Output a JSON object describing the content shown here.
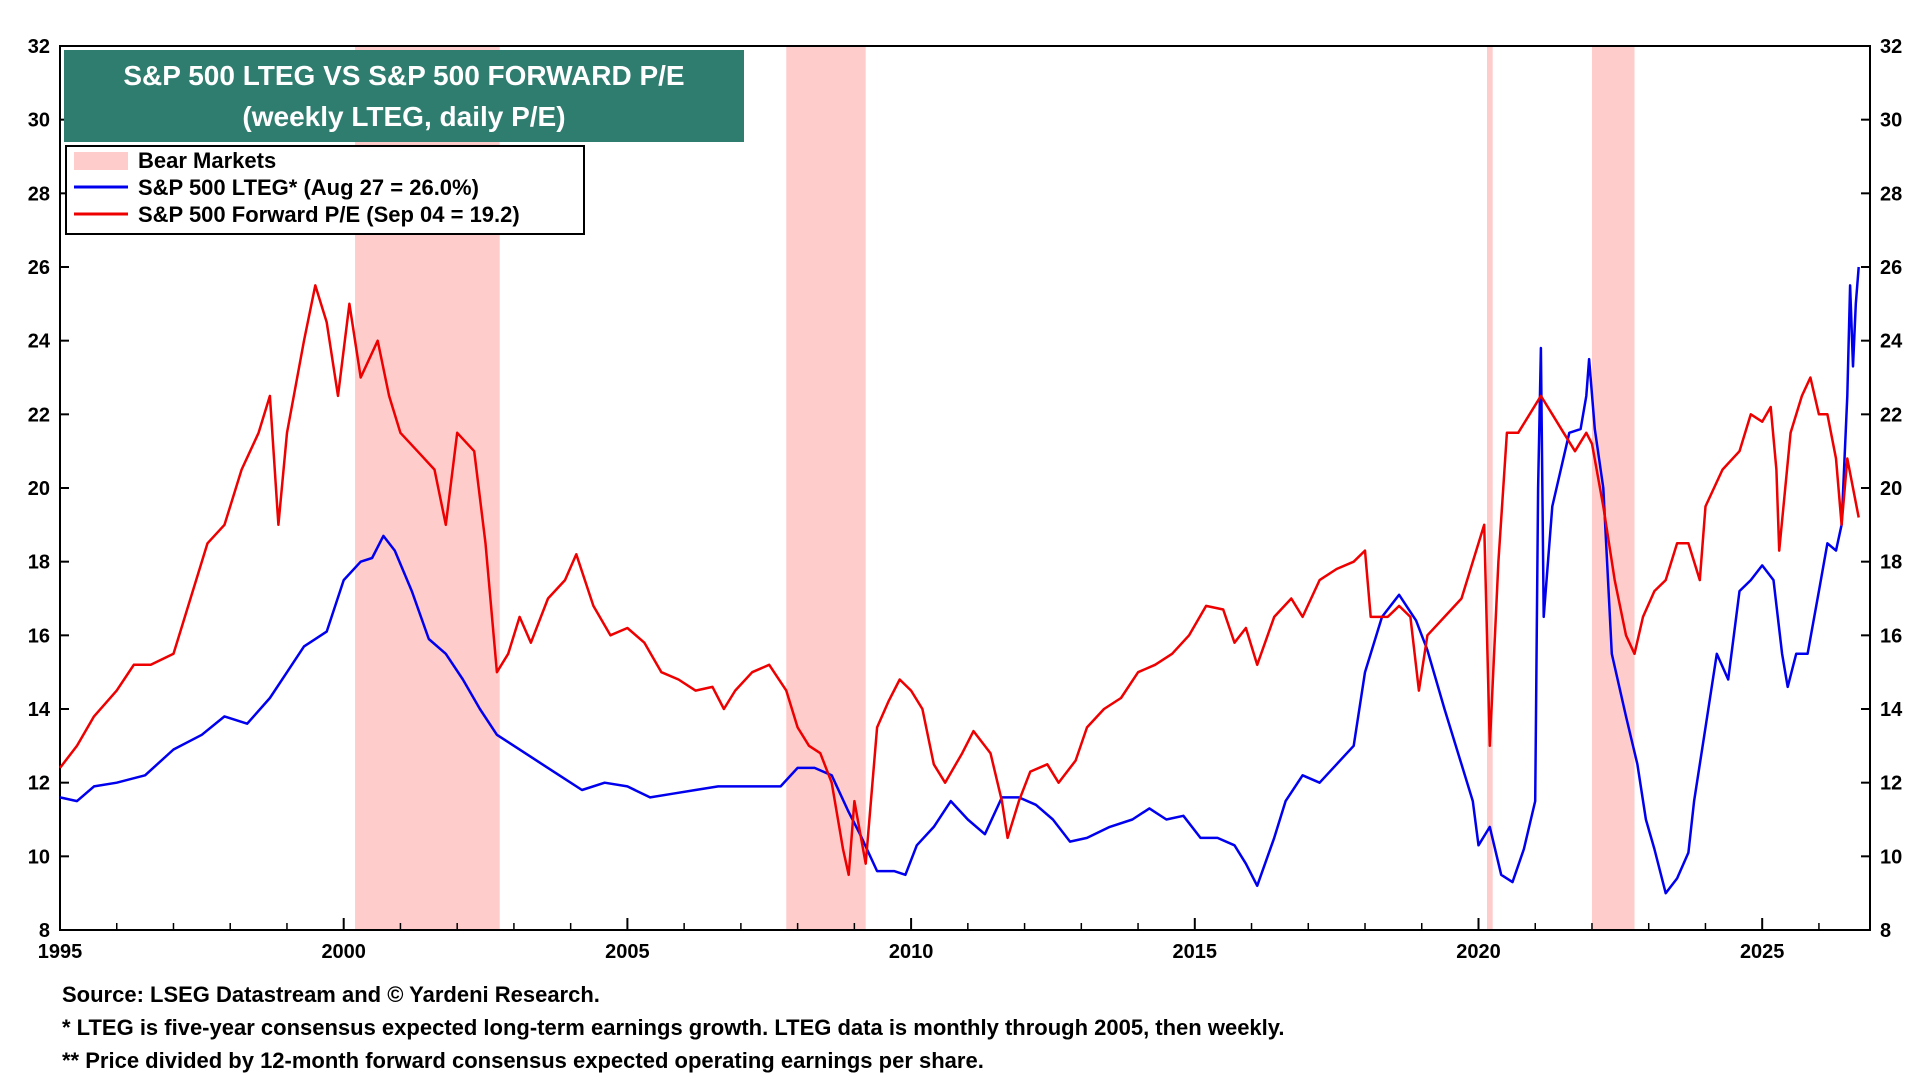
{
  "chart_data": {
    "type": "line",
    "title": "S&P 500 LTEG VS S&P 500 FORWARD P/E",
    "subtitle": "(weekly LTEG, daily P/E)",
    "xlabel": "",
    "ylabel": "",
    "xlim": [
      1995,
      2026.9
    ],
    "ylim": [
      8,
      32
    ],
    "x_ticks": [
      "1995",
      "2000",
      "2005",
      "2010",
      "2015",
      "2020",
      "2025"
    ],
    "y_ticks": [
      "8",
      "10",
      "12",
      "14",
      "16",
      "18",
      "20",
      "22",
      "24",
      "26",
      "28",
      "30",
      "32"
    ],
    "grid": false,
    "legend_position": "top-left",
    "bear_markets_label": "Bear Markets",
    "bear_markets": [
      [
        2000.2,
        2002.75
      ],
      [
        2007.8,
        2009.2
      ],
      [
        2020.15,
        2020.25
      ],
      [
        2022.0,
        2022.75
      ]
    ],
    "series": [
      {
        "name": "S&P 500 LTEG* (Aug 27 = 26.0%)",
        "color": "#0000ee",
        "points": [
          [
            1995.0,
            11.6
          ],
          [
            1995.3,
            11.5
          ],
          [
            1995.6,
            11.9
          ],
          [
            1996.0,
            12.0
          ],
          [
            1996.5,
            12.2
          ],
          [
            1997.0,
            12.9
          ],
          [
            1997.5,
            13.3
          ],
          [
            1997.9,
            13.8
          ],
          [
            1998.3,
            13.6
          ],
          [
            1998.7,
            14.3
          ],
          [
            1999.0,
            15.0
          ],
          [
            1999.3,
            15.7
          ],
          [
            1999.7,
            16.1
          ],
          [
            2000.0,
            17.5
          ],
          [
            2000.3,
            18.0
          ],
          [
            2000.5,
            18.1
          ],
          [
            2000.7,
            18.7
          ],
          [
            2000.9,
            18.3
          ],
          [
            2001.2,
            17.2
          ],
          [
            2001.5,
            15.9
          ],
          [
            2001.8,
            15.5
          ],
          [
            2002.1,
            14.8
          ],
          [
            2002.4,
            14.0
          ],
          [
            2002.7,
            13.3
          ],
          [
            2003.0,
            13.0
          ],
          [
            2003.4,
            12.6
          ],
          [
            2003.8,
            12.2
          ],
          [
            2004.2,
            11.8
          ],
          [
            2004.6,
            12.0
          ],
          [
            2005.0,
            11.9
          ],
          [
            2005.4,
            11.6
          ],
          [
            2005.8,
            11.7
          ],
          [
            2006.2,
            11.8
          ],
          [
            2006.6,
            11.9
          ],
          [
            2007.0,
            11.9
          ],
          [
            2007.4,
            11.9
          ],
          [
            2007.7,
            11.9
          ],
          [
            2008.0,
            12.4
          ],
          [
            2008.3,
            12.4
          ],
          [
            2008.6,
            12.2
          ],
          [
            2008.9,
            11.2
          ],
          [
            2009.1,
            10.6
          ],
          [
            2009.4,
            9.6
          ],
          [
            2009.7,
            9.6
          ],
          [
            2009.9,
            9.5
          ],
          [
            2010.1,
            10.3
          ],
          [
            2010.4,
            10.8
          ],
          [
            2010.7,
            11.5
          ],
          [
            2011.0,
            11.0
          ],
          [
            2011.3,
            10.6
          ],
          [
            2011.6,
            11.6
          ],
          [
            2011.9,
            11.6
          ],
          [
            2012.2,
            11.4
          ],
          [
            2012.5,
            11.0
          ],
          [
            2012.8,
            10.4
          ],
          [
            2013.1,
            10.5
          ],
          [
            2013.5,
            10.8
          ],
          [
            2013.9,
            11.0
          ],
          [
            2014.2,
            11.3
          ],
          [
            2014.5,
            11.0
          ],
          [
            2014.8,
            11.1
          ],
          [
            2015.1,
            10.5
          ],
          [
            2015.4,
            10.5
          ],
          [
            2015.7,
            10.3
          ],
          [
            2015.9,
            9.8
          ],
          [
            2016.1,
            9.2
          ],
          [
            2016.4,
            10.5
          ],
          [
            2016.6,
            11.5
          ],
          [
            2016.9,
            12.2
          ],
          [
            2017.2,
            12.0
          ],
          [
            2017.5,
            12.5
          ],
          [
            2017.8,
            13.0
          ],
          [
            2018.0,
            15.0
          ],
          [
            2018.3,
            16.5
          ],
          [
            2018.6,
            17.1
          ],
          [
            2018.9,
            16.4
          ],
          [
            2019.1,
            15.6
          ],
          [
            2019.4,
            14.0
          ],
          [
            2019.7,
            12.5
          ],
          [
            2019.9,
            11.5
          ],
          [
            2020.0,
            10.3
          ],
          [
            2020.2,
            10.8
          ],
          [
            2020.4,
            9.5
          ],
          [
            2020.6,
            9.3
          ],
          [
            2020.8,
            10.2
          ],
          [
            2021.0,
            11.5
          ],
          [
            2021.05,
            20.0
          ],
          [
            2021.1,
            23.8
          ],
          [
            2021.15,
            16.5
          ],
          [
            2021.3,
            19.5
          ],
          [
            2021.6,
            21.5
          ],
          [
            2021.8,
            21.6
          ],
          [
            2021.9,
            22.5
          ],
          [
            2021.95,
            23.5
          ],
          [
            2022.05,
            21.6
          ],
          [
            2022.2,
            20.0
          ],
          [
            2022.35,
            15.5
          ],
          [
            2022.6,
            13.8
          ],
          [
            2022.8,
            12.5
          ],
          [
            2022.95,
            11.0
          ],
          [
            2023.1,
            10.2
          ],
          [
            2023.3,
            9.0
          ],
          [
            2023.5,
            9.4
          ],
          [
            2023.7,
            10.1
          ],
          [
            2023.8,
            11.5
          ],
          [
            2024.0,
            13.5
          ],
          [
            2024.2,
            15.5
          ],
          [
            2024.4,
            14.8
          ],
          [
            2024.6,
            17.2
          ],
          [
            2024.8,
            17.5
          ],
          [
            2025.0,
            17.9
          ],
          [
            2025.2,
            17.5
          ],
          [
            2025.35,
            15.5
          ],
          [
            2025.45,
            14.6
          ],
          [
            2025.6,
            15.5
          ],
          [
            2025.8,
            15.5
          ],
          [
            2026.0,
            17.2
          ],
          [
            2026.15,
            18.5
          ],
          [
            2026.3,
            18.3
          ],
          [
            2026.4,
            19.0
          ],
          [
            2026.5,
            22.5
          ],
          [
            2026.55,
            25.5
          ],
          [
            2026.6,
            23.3
          ],
          [
            2026.65,
            25.0
          ],
          [
            2026.7,
            26.0
          ]
        ]
      },
      {
        "name": "S&P 500 Forward P/E (Sep 04 = 19.2)",
        "color": "#ee0000",
        "points": [
          [
            1995.0,
            12.4
          ],
          [
            1995.3,
            13.0
          ],
          [
            1995.6,
            13.8
          ],
          [
            1996.0,
            14.5
          ],
          [
            1996.3,
            15.2
          ],
          [
            1996.6,
            15.2
          ],
          [
            1997.0,
            15.5
          ],
          [
            1997.3,
            17.0
          ],
          [
            1997.6,
            18.5
          ],
          [
            1997.9,
            19.0
          ],
          [
            1998.2,
            20.5
          ],
          [
            1998.5,
            21.5
          ],
          [
            1998.7,
            22.5
          ],
          [
            1998.85,
            19.0
          ],
          [
            1999.0,
            21.5
          ],
          [
            1999.3,
            24.0
          ],
          [
            1999.5,
            25.5
          ],
          [
            1999.7,
            24.5
          ],
          [
            1999.9,
            22.5
          ],
          [
            2000.1,
            25.0
          ],
          [
            2000.3,
            23.0
          ],
          [
            2000.6,
            24.0
          ],
          [
            2000.8,
            22.5
          ],
          [
            2001.0,
            21.5
          ],
          [
            2001.3,
            21.0
          ],
          [
            2001.6,
            20.5
          ],
          [
            2001.8,
            19.0
          ],
          [
            2002.0,
            21.5
          ],
          [
            2002.3,
            21.0
          ],
          [
            2002.5,
            18.5
          ],
          [
            2002.7,
            15.0
          ],
          [
            2002.9,
            15.5
          ],
          [
            2003.1,
            16.5
          ],
          [
            2003.3,
            15.8
          ],
          [
            2003.6,
            17.0
          ],
          [
            2003.9,
            17.5
          ],
          [
            2004.1,
            18.2
          ],
          [
            2004.4,
            16.8
          ],
          [
            2004.7,
            16.0
          ],
          [
            2005.0,
            16.2
          ],
          [
            2005.3,
            15.8
          ],
          [
            2005.6,
            15.0
          ],
          [
            2005.9,
            14.8
          ],
          [
            2006.2,
            14.5
          ],
          [
            2006.5,
            14.6
          ],
          [
            2006.7,
            14.0
          ],
          [
            2006.9,
            14.5
          ],
          [
            2007.2,
            15.0
          ],
          [
            2007.5,
            15.2
          ],
          [
            2007.8,
            14.5
          ],
          [
            2008.0,
            13.5
          ],
          [
            2008.2,
            13.0
          ],
          [
            2008.4,
            12.8
          ],
          [
            2008.6,
            12.0
          ],
          [
            2008.8,
            10.2
          ],
          [
            2008.9,
            9.5
          ],
          [
            2009.0,
            11.5
          ],
          [
            2009.2,
            9.8
          ],
          [
            2009.4,
            13.5
          ],
          [
            2009.6,
            14.2
          ],
          [
            2009.8,
            14.8
          ],
          [
            2010.0,
            14.5
          ],
          [
            2010.2,
            14.0
          ],
          [
            2010.4,
            12.5
          ],
          [
            2010.6,
            12.0
          ],
          [
            2010.9,
            12.8
          ],
          [
            2011.1,
            13.4
          ],
          [
            2011.4,
            12.8
          ],
          [
            2011.6,
            11.5
          ],
          [
            2011.7,
            10.5
          ],
          [
            2011.9,
            11.5
          ],
          [
            2012.1,
            12.3
          ],
          [
            2012.4,
            12.5
          ],
          [
            2012.6,
            12.0
          ],
          [
            2012.9,
            12.6
          ],
          [
            2013.1,
            13.5
          ],
          [
            2013.4,
            14.0
          ],
          [
            2013.7,
            14.3
          ],
          [
            2014.0,
            15.0
          ],
          [
            2014.3,
            15.2
          ],
          [
            2014.6,
            15.5
          ],
          [
            2014.9,
            16.0
          ],
          [
            2015.2,
            16.8
          ],
          [
            2015.5,
            16.7
          ],
          [
            2015.7,
            15.8
          ],
          [
            2015.9,
            16.2
          ],
          [
            2016.1,
            15.2
          ],
          [
            2016.4,
            16.5
          ],
          [
            2016.7,
            17.0
          ],
          [
            2016.9,
            16.5
          ],
          [
            2017.2,
            17.5
          ],
          [
            2017.5,
            17.8
          ],
          [
            2017.8,
            18.0
          ],
          [
            2018.0,
            18.3
          ],
          [
            2018.1,
            16.5
          ],
          [
            2018.4,
            16.5
          ],
          [
            2018.6,
            16.8
          ],
          [
            2018.8,
            16.5
          ],
          [
            2018.95,
            14.5
          ],
          [
            2019.1,
            16.0
          ],
          [
            2019.4,
            16.5
          ],
          [
            2019.7,
            17.0
          ],
          [
            2019.9,
            18.0
          ],
          [
            2020.0,
            18.5
          ],
          [
            2020.1,
            19.0
          ],
          [
            2020.2,
            13.0
          ],
          [
            2020.35,
            18.0
          ],
          [
            2020.5,
            21.5
          ],
          [
            2020.7,
            21.5
          ],
          [
            2020.9,
            22.0
          ],
          [
            2021.1,
            22.5
          ],
          [
            2021.3,
            22.0
          ],
          [
            2021.5,
            21.5
          ],
          [
            2021.7,
            21.0
          ],
          [
            2021.9,
            21.5
          ],
          [
            2022.0,
            21.2
          ],
          [
            2022.2,
            19.5
          ],
          [
            2022.4,
            17.5
          ],
          [
            2022.6,
            16.0
          ],
          [
            2022.75,
            15.5
          ],
          [
            2022.9,
            16.5
          ],
          [
            2023.1,
            17.2
          ],
          [
            2023.3,
            17.5
          ],
          [
            2023.5,
            18.5
          ],
          [
            2023.7,
            18.5
          ],
          [
            2023.9,
            17.5
          ],
          [
            2024.0,
            19.5
          ],
          [
            2024.3,
            20.5
          ],
          [
            2024.6,
            21.0
          ],
          [
            2024.8,
            22.0
          ],
          [
            2025.0,
            21.8
          ],
          [
            2025.15,
            22.2
          ],
          [
            2025.25,
            20.5
          ],
          [
            2025.3,
            18.3
          ],
          [
            2025.5,
            21.5
          ],
          [
            2025.7,
            22.5
          ],
          [
            2025.85,
            23.0
          ],
          [
            2026.0,
            22.0
          ],
          [
            2026.15,
            22.0
          ],
          [
            2026.3,
            20.8
          ],
          [
            2026.4,
            19.0
          ],
          [
            2026.5,
            20.8
          ],
          [
            2026.6,
            20.0
          ],
          [
            2026.7,
            19.2
          ]
        ]
      }
    ]
  },
  "notes": {
    "source": "Source: LSEG Datastream and © Yardeni Research.",
    "note1": "*  LTEG is five-year consensus expected long-term earnings growth. LTEG data is monthly through 2005, then weekly.",
    "note2": "** Price divided by 12-month forward consensus expected operating earnings per share."
  },
  "colors": {
    "title_bg": "#2e7d6f",
    "title_text": "#ffffff",
    "bear_fill": "#ffcccc"
  }
}
